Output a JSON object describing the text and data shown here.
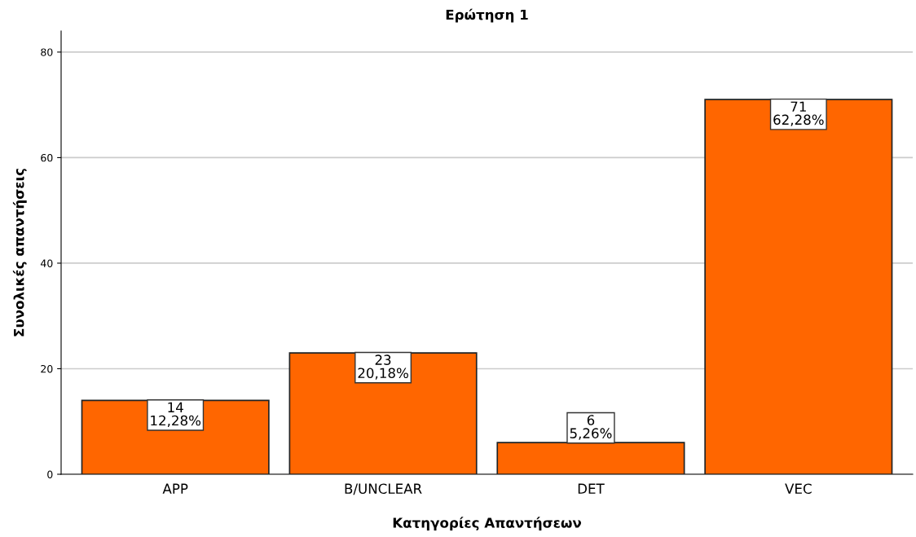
{
  "chart_data": {
    "type": "bar",
    "title": "Ερώτηση 1",
    "xlabel": "Κατηγορίες Απαντήσεων",
    "ylabel": "Συνολικές απαντήσεις",
    "categories": [
      "APP",
      "B/UNCLEAR",
      "DET",
      "VEC"
    ],
    "values": [
      14,
      23,
      6,
      71
    ],
    "value_labels": [
      "14\n12,28%",
      "23\n20,18%",
      "6\n5,26%",
      "71\n62,28%"
    ],
    "color": "#ff6600",
    "ylim": [
      0,
      84
    ],
    "yticks": [
      0,
      20,
      40,
      60,
      80
    ],
    "grid": "y"
  }
}
